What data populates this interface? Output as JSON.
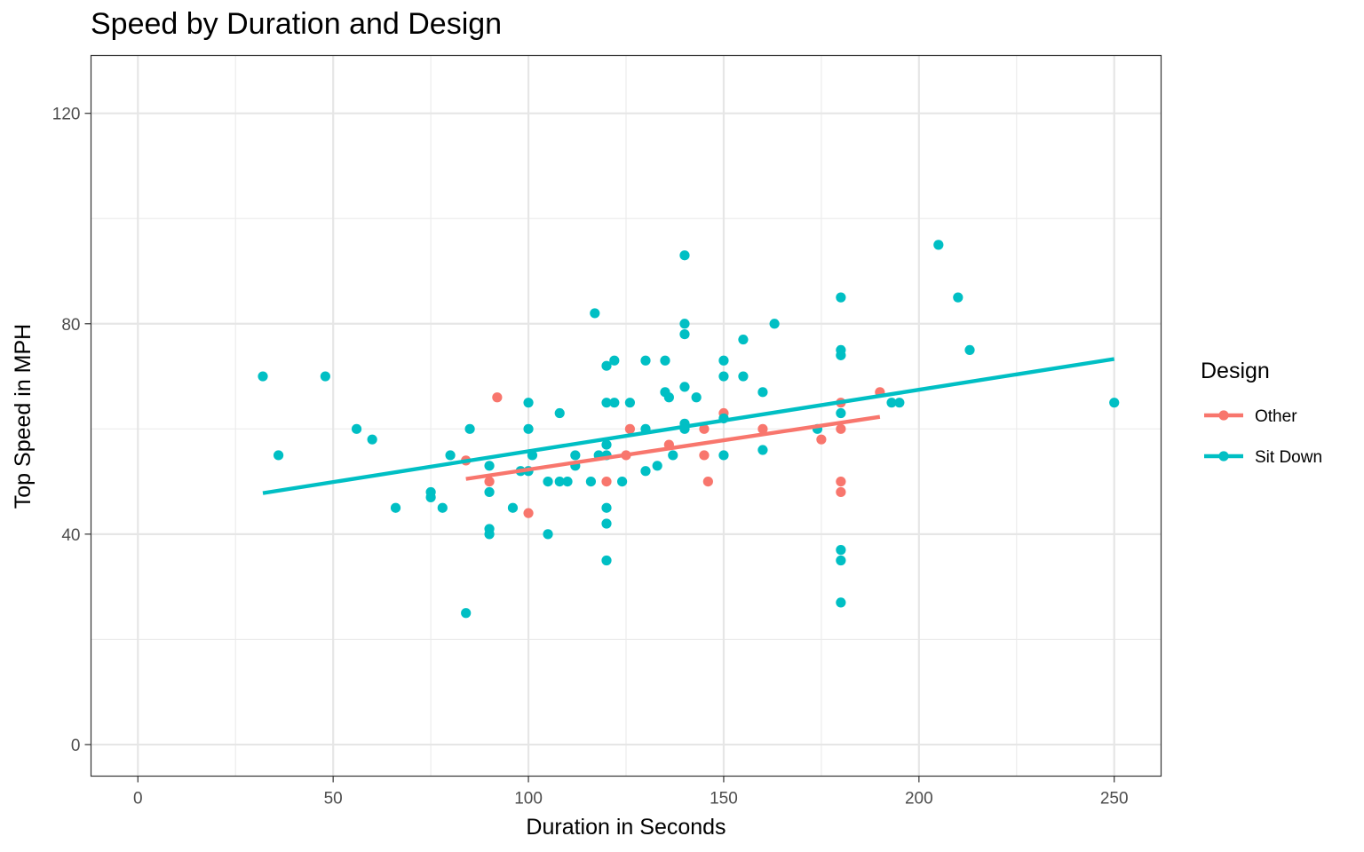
{
  "chart_data": {
    "type": "scatter",
    "title": "Speed by Duration and Design",
    "xlabel": "Duration in Seconds",
    "ylabel": "Top Speed in MPH",
    "xlim": [
      -12,
      262
    ],
    "ylim": [
      -6,
      131
    ],
    "xticks": [
      0,
      50,
      100,
      150,
      200,
      250
    ],
    "yticks": [
      0,
      40,
      80,
      120
    ],
    "x_minor_ticks": [
      25,
      75,
      125,
      175,
      225
    ],
    "y_minor_ticks": [
      20,
      60,
      100
    ],
    "grid": true,
    "legend": {
      "title": "Design",
      "position": "right"
    },
    "series": [
      {
        "name": "Other",
        "color": "#F8766D",
        "points": [
          [
            84,
            54
          ],
          [
            90,
            50
          ],
          [
            92,
            66
          ],
          [
            100,
            44
          ],
          [
            120,
            50
          ],
          [
            125,
            55
          ],
          [
            126,
            60
          ],
          [
            136,
            57
          ],
          [
            145,
            55
          ],
          [
            145,
            60
          ],
          [
            146,
            50
          ],
          [
            150,
            63
          ],
          [
            160,
            60
          ],
          [
            175,
            58
          ],
          [
            180,
            65
          ],
          [
            180,
            60
          ],
          [
            180,
            50
          ],
          [
            180,
            48
          ],
          [
            190,
            67
          ]
        ],
        "fit_line": {
          "x": [
            84,
            190
          ],
          "y": [
            50.5,
            62.3
          ]
        }
      },
      {
        "name": "Sit Down",
        "color": "#00BFC4",
        "points": [
          [
            32,
            70
          ],
          [
            36,
            55
          ],
          [
            48,
            70
          ],
          [
            56,
            60
          ],
          [
            60,
            58
          ],
          [
            66,
            45
          ],
          [
            75,
            48
          ],
          [
            75,
            47
          ],
          [
            78,
            45
          ],
          [
            80,
            55
          ],
          [
            84,
            25
          ],
          [
            85,
            60
          ],
          [
            90,
            53
          ],
          [
            90,
            48
          ],
          [
            90,
            41
          ],
          [
            90,
            40
          ],
          [
            96,
            45
          ],
          [
            98,
            52
          ],
          [
            100,
            65
          ],
          [
            100,
            60
          ],
          [
            100,
            52
          ],
          [
            101,
            55
          ],
          [
            105,
            50
          ],
          [
            105,
            40
          ],
          [
            108,
            63
          ],
          [
            108,
            50
          ],
          [
            110,
            50
          ],
          [
            112,
            55
          ],
          [
            112,
            53
          ],
          [
            116,
            50
          ],
          [
            117,
            82
          ],
          [
            118,
            55
          ],
          [
            120,
            72
          ],
          [
            120,
            65
          ],
          [
            120,
            57
          ],
          [
            120,
            55
          ],
          [
            120,
            45
          ],
          [
            120,
            42
          ],
          [
            120,
            35
          ],
          [
            122,
            73
          ],
          [
            122,
            65
          ],
          [
            124,
            50
          ],
          [
            126,
            65
          ],
          [
            130,
            73
          ],
          [
            130,
            60
          ],
          [
            130,
            52
          ],
          [
            133,
            53
          ],
          [
            135,
            73
          ],
          [
            135,
            67
          ],
          [
            136,
            66
          ],
          [
            137,
            55
          ],
          [
            140,
            93
          ],
          [
            140,
            80
          ],
          [
            140,
            78
          ],
          [
            140,
            68
          ],
          [
            140,
            61
          ],
          [
            140,
            60
          ],
          [
            143,
            66
          ],
          [
            150,
            73
          ],
          [
            150,
            70
          ],
          [
            150,
            62
          ],
          [
            150,
            55
          ],
          [
            155,
            77
          ],
          [
            155,
            70
          ],
          [
            160,
            67
          ],
          [
            160,
            56
          ],
          [
            163,
            80
          ],
          [
            174,
            60
          ],
          [
            180,
            85
          ],
          [
            180,
            75
          ],
          [
            180,
            74
          ],
          [
            180,
            63
          ],
          [
            180,
            37
          ],
          [
            180,
            35
          ],
          [
            180,
            27
          ],
          [
            193,
            65
          ],
          [
            195,
            65
          ],
          [
            205,
            95
          ],
          [
            210,
            85
          ],
          [
            213,
            75
          ],
          [
            250,
            65
          ]
        ],
        "fit_line": {
          "x": [
            32,
            250
          ],
          "y": [
            47.8,
            73.3
          ]
        }
      }
    ]
  }
}
